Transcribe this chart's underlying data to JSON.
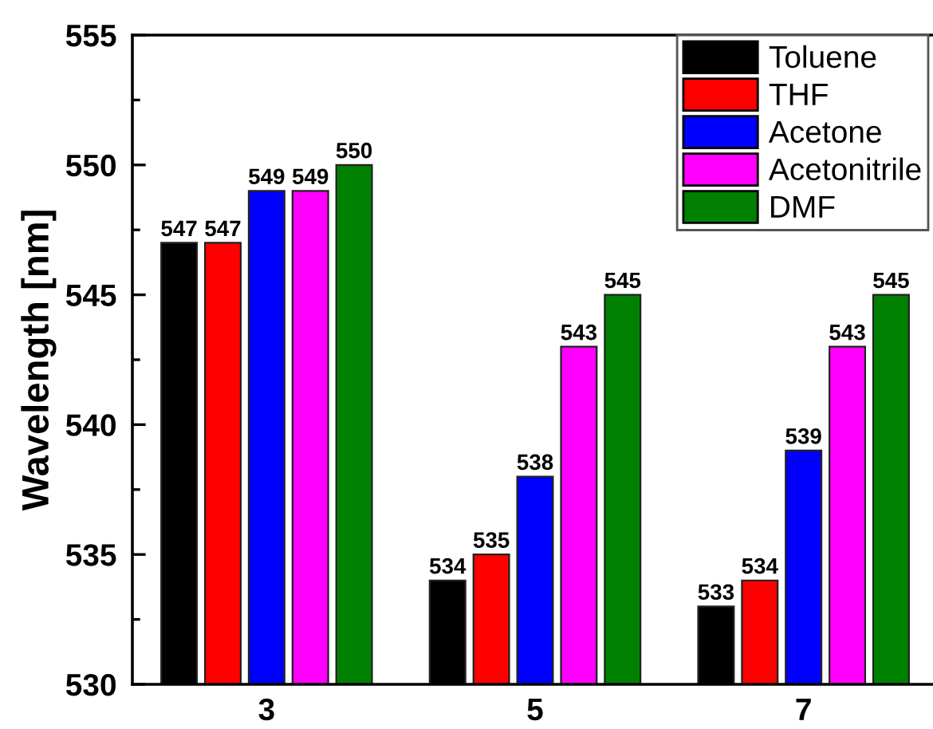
{
  "chart_data": {
    "type": "bar",
    "ylabel": "Wavelength [nm]",
    "categories": [
      "3",
      "5",
      "7"
    ],
    "series": [
      {
        "name": "Toluene",
        "color": "#000000",
        "values": [
          547,
          534,
          533
        ]
      },
      {
        "name": "THF",
        "color": "#ff0000",
        "values": [
          547,
          535,
          534
        ]
      },
      {
        "name": "Acetone",
        "color": "#0000ff",
        "values": [
          549,
          538,
          539
        ]
      },
      {
        "name": "Acetonitrile",
        "color": "#ff00ff",
        "values": [
          549,
          543,
          543
        ]
      },
      {
        "name": "DMF",
        "color": "#008000",
        "values": [
          550,
          545,
          545
        ]
      }
    ],
    "ylim": [
      530,
      555
    ],
    "yticks": [
      530,
      535,
      540,
      545,
      550,
      555
    ],
    "data_labels": true,
    "legend": "top right"
  }
}
